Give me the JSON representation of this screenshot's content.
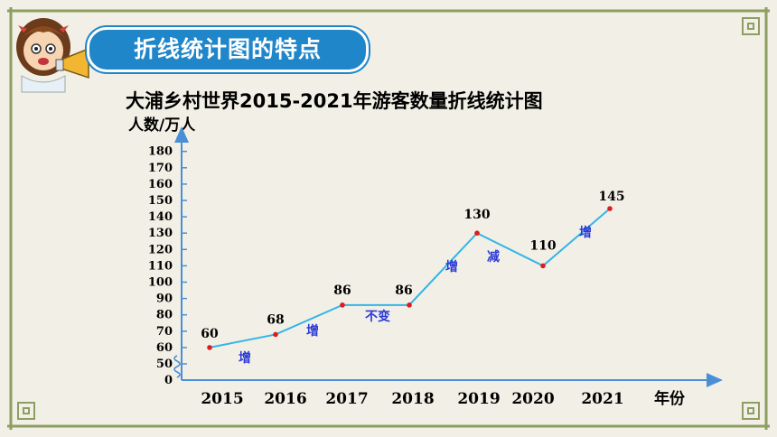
{
  "section": {
    "badge_label": "折线统计图的特点"
  },
  "colors": {
    "accent": "#1f86c9",
    "line": "#33b5e8",
    "point": "#e01b1b",
    "annotation": "#2a39d6",
    "axis": "#4a8fd6"
  },
  "chart_data": {
    "type": "line",
    "title": "大浦乡村世界2015-2021年游客数量折线统计图",
    "ylabel": "人数/万人",
    "xlabel": "年份",
    "categories": [
      "2015",
      "2016",
      "2017",
      "2018",
      "2019",
      "2020",
      "2021"
    ],
    "values": [
      60,
      68,
      86,
      86,
      130,
      110,
      145
    ],
    "data_labels": [
      "60",
      "68",
      "86",
      "86",
      "130",
      "110",
      "145"
    ],
    "y_ticks": [
      "0",
      "50",
      "60",
      "70",
      "80",
      "90",
      "100",
      "110",
      "120",
      "130",
      "140",
      "150",
      "160",
      "170",
      "180"
    ],
    "ylim": [
      0,
      180
    ],
    "axis_break": true,
    "annotations": [
      "增",
      "增",
      "不变",
      "增",
      "减",
      "增"
    ]
  }
}
